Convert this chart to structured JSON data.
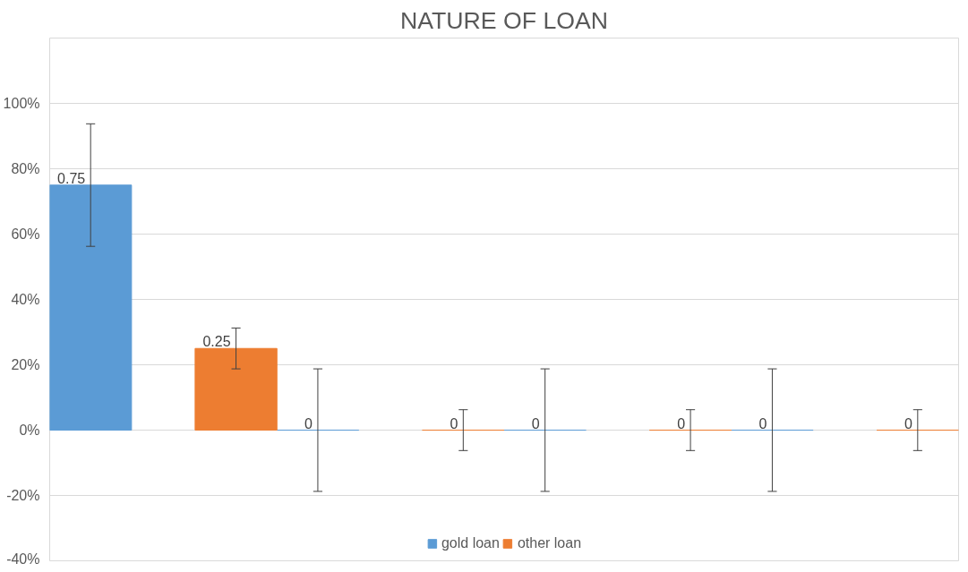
{
  "chart_data": {
    "type": "bar",
    "title": "NATURE OF LOAN",
    "categories": [
      null,
      null,
      null,
      null
    ],
    "series": [
      {
        "name": "gold loan",
        "color": "#5b9bd5",
        "values": [
          0.75,
          0,
          0,
          0
        ],
        "errors": [
          0.1875,
          0.1875,
          0.1875,
          0.1875
        ]
      },
      {
        "name": "other loan",
        "color": "#ed7d31",
        "values": [
          0.25,
          0,
          0,
          0
        ],
        "errors": [
          0.0625,
          0.0625,
          0.0625,
          0.0625
        ]
      }
    ],
    "ylim": [
      -0.4,
      1.2
    ],
    "yticks": [
      {
        "value": -0.4,
        "label": "-40%"
      },
      {
        "value": -0.2,
        "label": "-20%"
      },
      {
        "value": 0,
        "label": "0%"
      },
      {
        "value": 0.2,
        "label": "20%"
      },
      {
        "value": 0.4,
        "label": "40%"
      },
      {
        "value": 0.6,
        "label": "60%"
      },
      {
        "value": 0.8,
        "label": "80%"
      },
      {
        "value": 1.0,
        "label": "100%"
      }
    ],
    "grid": "y",
    "legend": "bottom",
    "data_labels": true
  }
}
